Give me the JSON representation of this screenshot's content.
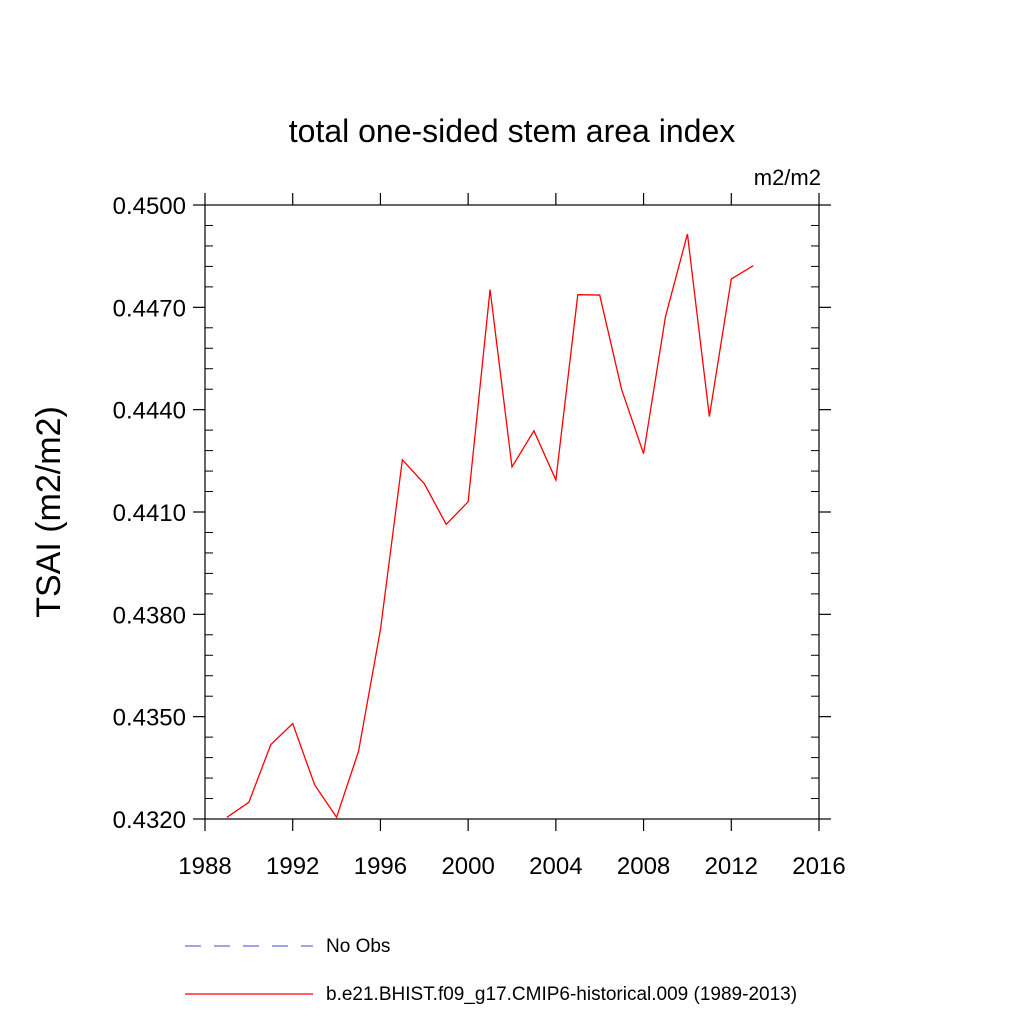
{
  "chart_data": {
    "type": "line",
    "title": "total one-sided stem area index",
    "units": "m2/m2",
    "xlabel": "",
    "ylabel": "TSAI  (m2/m2)",
    "xlim": [
      1988,
      2016
    ],
    "ylim": [
      0.432,
      0.45
    ],
    "xticks": [
      1988,
      1992,
      1996,
      2000,
      2004,
      2008,
      2012,
      2016
    ],
    "yticks": [
      "0.4320",
      "0.4350",
      "0.4380",
      "0.4410",
      "0.4440",
      "0.4470",
      "0.4500"
    ],
    "grid": false,
    "legend_position": "bottom",
    "series": [
      {
        "name": "No Obs",
        "color": "#6b6bd6",
        "dash": "dashed",
        "x": [],
        "y": []
      },
      {
        "name": "b.e21.BHIST.f09_g17.CMIP6-historical.009 (1989-2013)",
        "color": "#ff0000",
        "dash": "solid",
        "x": [
          1989,
          1990,
          1991,
          1992,
          1993,
          1994,
          1995,
          1996,
          1997,
          1998,
          1999,
          2000,
          2001,
          2002,
          2003,
          2004,
          2005,
          2006,
          2007,
          2008,
          2009,
          2010,
          2011,
          2012,
          2013
        ],
        "y": [
          0.43205,
          0.43249,
          0.43418,
          0.4348,
          0.433,
          0.43205,
          0.43398,
          0.43755,
          0.44253,
          0.44183,
          0.44064,
          0.4413,
          0.44752,
          0.44232,
          0.44338,
          0.44194,
          0.44737,
          0.44736,
          0.44459,
          0.44271,
          0.44673,
          0.44915,
          0.4438,
          0.44783,
          0.44822
        ]
      }
    ]
  }
}
